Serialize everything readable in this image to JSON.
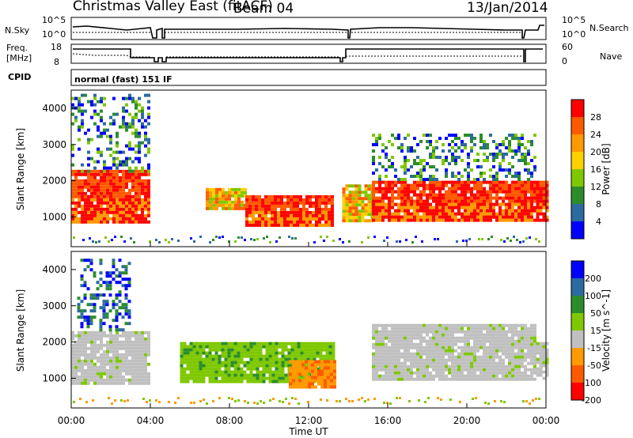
{
  "header": {
    "title": "Christmas Valley East (fitACF)",
    "beam": "Beam 04",
    "date": "13/Jan/2014"
  },
  "panels": {
    "nsky_label": "N.Sky",
    "nsky_ticks": [
      "10^5",
      "10^0"
    ],
    "nsearch_label": "N.Search",
    "nsearch_ticks": [
      "10^5",
      "10^0"
    ],
    "freq_label_1": "Freq.",
    "freq_label_2": "[MHz]",
    "freq_ticks": [
      "18",
      "8"
    ],
    "nave_label": "Nave",
    "nave_ticks": [
      "60",
      "0"
    ],
    "cpid_label": "CPID",
    "cpid_value": "normal (fast) 151 IF"
  },
  "chart_data": [
    {
      "type": "heatmap",
      "name": "power",
      "ylabel": "Slant Range [km]",
      "xlabel": "Time UT",
      "x_ticks": [
        "00:00",
        "04:00",
        "08:00",
        "12:00",
        "16:00",
        "20:00",
        "00:00"
      ],
      "y_ticks": [
        "1000",
        "2000",
        "3000",
        "4000"
      ],
      "xlim": [
        0,
        24
      ],
      "ylim": [
        180,
        4500
      ],
      "colorbar": {
        "label": "Power [dB]",
        "ticks": [
          "28",
          "24",
          "20",
          "16",
          "12",
          "8",
          "4"
        ],
        "colors": [
          "#ff0000",
          "#ff5a00",
          "#ff9a00",
          "#ffd000",
          "#7fc800",
          "#2c8c2c",
          "#2c6aa0",
          "#0000ff"
        ]
      },
      "regions": [
        {
          "t": [
            0.0,
            4.0
          ],
          "r": [
            900,
            2300
          ],
          "level": "high"
        },
        {
          "t": [
            0.0,
            4.0
          ],
          "r": [
            2300,
            4400
          ],
          "level": "patchy"
        },
        {
          "t": [
            6.8,
            8.8
          ],
          "r": [
            1200,
            1800
          ],
          "level": "mid"
        },
        {
          "t": [
            8.8,
            13.2
          ],
          "r": [
            800,
            1600
          ],
          "level": "high"
        },
        {
          "t": [
            13.7,
            15.2
          ],
          "r": [
            900,
            1900
          ],
          "level": "mid"
        },
        {
          "t": [
            15.2,
            23.5
          ],
          "r": [
            900,
            2000
          ],
          "level": "high"
        },
        {
          "t": [
            15.2,
            23.5
          ],
          "r": [
            2000,
            3300
          ],
          "level": "patchy"
        },
        {
          "t": [
            23.5,
            24.0
          ],
          "r": [
            900,
            2000
          ],
          "level": "high"
        }
      ]
    },
    {
      "type": "heatmap",
      "name": "velocity",
      "ylabel": "Slant Range [km]",
      "xlabel": "Time UT",
      "x_ticks": [
        "00:00",
        "04:00",
        "08:00",
        "12:00",
        "16:00",
        "20:00",
        "00:00"
      ],
      "y_ticks": [
        "1000",
        "2000",
        "3000",
        "4000"
      ],
      "xlim": [
        0,
        24
      ],
      "ylim": [
        180,
        4500
      ],
      "colorbar": {
        "label": "Velocity [m s^-1]",
        "ticks": [
          "200",
          "100",
          "50",
          "15",
          "-15",
          "-50",
          "-100",
          "-200"
        ],
        "colors": [
          "#0000ff",
          "#2c6aa0",
          "#2c8c2c",
          "#7fc800",
          "#c0c0c0",
          "#ff9a00",
          "#ff5a00",
          "#ff0000"
        ]
      },
      "regions": [
        {
          "t": [
            0.0,
            4.0
          ],
          "r": [
            900,
            2300
          ],
          "level": "ground"
        },
        {
          "t": [
            0.3,
            3.0
          ],
          "r": [
            2300,
            4300
          ],
          "level": "positive"
        },
        {
          "t": [
            5.5,
            13.3
          ],
          "r": [
            900,
            2000
          ],
          "level": "positive-weak"
        },
        {
          "t": [
            11.0,
            13.3
          ],
          "r": [
            800,
            1500
          ],
          "level": "negative-weak"
        },
        {
          "t": [
            15.2,
            23.5
          ],
          "r": [
            1000,
            2500
          ],
          "level": "ground"
        },
        {
          "t": [
            23.5,
            24.0
          ],
          "r": [
            1000,
            2000
          ],
          "level": "ground"
        }
      ]
    }
  ]
}
